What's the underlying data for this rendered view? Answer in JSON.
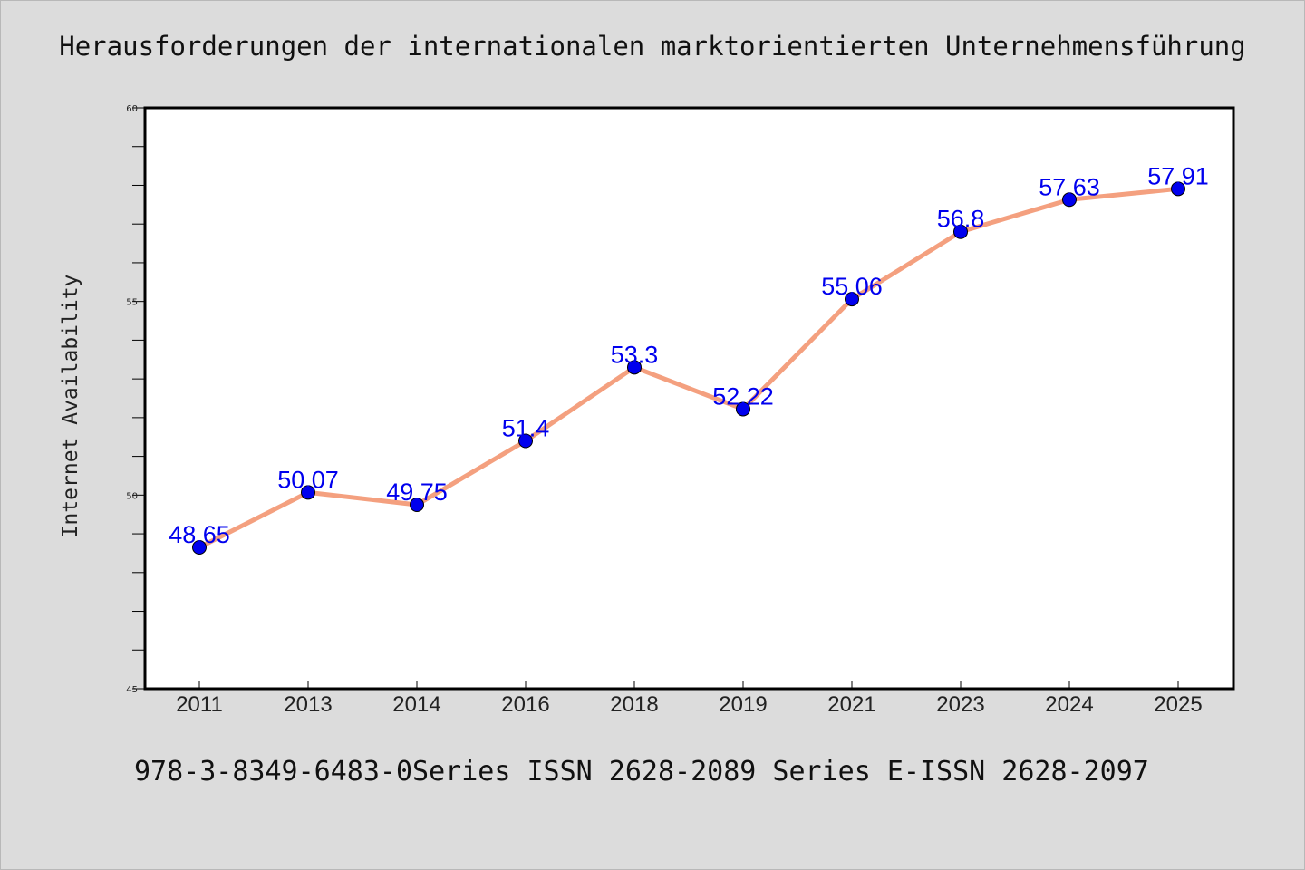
{
  "title": "Herausforderungen der internationalen marktorientierten Unternehmensführung",
  "footer": "978-3-8349-6483-0Series ISSN 2628-2089 Series E-ISSN 2628-2097",
  "colors": {
    "background": "#dcdcdc",
    "plot_background": "#ffffff",
    "line": "#f4a07f",
    "marker": "#0000ee",
    "label": "#0000ee"
  },
  "chart_data": {
    "type": "line",
    "title": "Herausforderungen der internationalen marktorientierten Unternehmensführung",
    "xlabel": "",
    "ylabel": "Internet Availability",
    "categories": [
      "2011",
      "2013",
      "2014",
      "2016",
      "2018",
      "2019",
      "2021",
      "2023",
      "2024",
      "2025"
    ],
    "series": [
      {
        "values": [
          48.65,
          50.07,
          49.75,
          51.4,
          53.3,
          52.22,
          55.06,
          56.8,
          57.63,
          57.91
        ],
        "labels": [
          "48.65",
          "50.07",
          "49.75",
          "51.4",
          "53.3",
          "52.22",
          "55.06",
          "56.8",
          "57.63",
          "57.91"
        ]
      }
    ],
    "ylim": [
      45,
      60
    ],
    "yticks_major": [
      45,
      50,
      55,
      60
    ],
    "ytick_labels": [
      "45",
      "50",
      "55",
      "60"
    ],
    "yticks_minor_step": 1,
    "grid": false,
    "legend": "none"
  }
}
